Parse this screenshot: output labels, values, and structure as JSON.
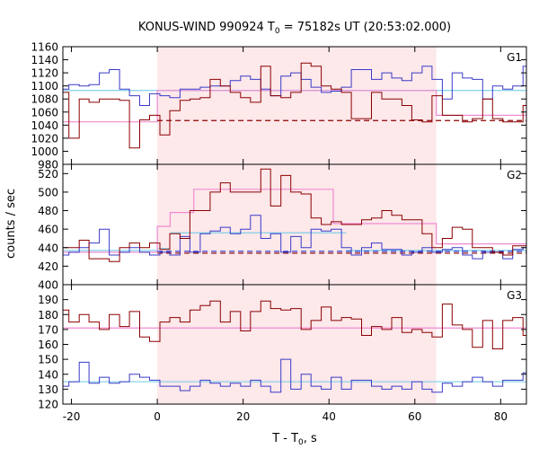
{
  "chart_data": {
    "type": "line",
    "title_main": "KONUS-WIND 990924 T",
    "title_sub": "0",
    "title_rest": " = 75182s UT (20:53:02.000)",
    "xlabel_main": "T - T",
    "xlabel_sub": "0",
    "xlabel_rest": ", s",
    "ylabel": "counts / sec",
    "xlim": [
      -22,
      86
    ],
    "xticks": [
      -20,
      0,
      20,
      40,
      60,
      80
    ],
    "shade": [
      0,
      65
    ],
    "colors": {
      "red": "#8b0000",
      "blue": "#3a3ac8",
      "pink": "#f08ad2",
      "cyan": "#7fd0e8",
      "shade": "#fde8ea"
    },
    "panels": [
      {
        "name": "G1",
        "ylim": [
          980,
          1160
        ],
        "yticks": [
          980,
          1000,
          1020,
          1040,
          1060,
          1080,
          1100,
          1120,
          1140,
          1160
        ],
        "red_x": [
          -22,
          -20.6,
          -18.2,
          -15.9,
          -13.5,
          -11.2,
          -8.8,
          -6.5,
          -4.1,
          -1.8,
          0.6,
          2.9,
          5.3,
          7.6,
          10.0,
          12.3,
          14.7,
          17.0,
          19.4,
          21.7,
          24.1,
          26.4,
          28.8,
          31.1,
          33.5,
          35.8,
          38.2,
          40.5,
          42.9,
          45.2,
          47.6,
          49.9,
          52.3,
          54.6,
          57.0,
          59.3,
          61.7,
          64.0,
          66.4,
          68.7,
          71.1,
          73.4,
          75.8,
          78.1,
          80.5,
          82.8,
          85.2,
          86
        ],
        "red_y": [
          1090,
          1020,
          1080,
          1075,
          1080,
          1080,
          1078,
          1005,
          1048,
          1055,
          1025,
          1062,
          1078,
          1080,
          1082,
          1110,
          1100,
          1090,
          1082,
          1075,
          1130,
          1085,
          1082,
          1090,
          1135,
          1130,
          1100,
          1095,
          1090,
          1050,
          1050,
          1090,
          1080,
          1080,
          1070,
          1048,
          1045,
          1085,
          1055,
          1055,
          1045,
          1050,
          1080,
          1050,
          1045,
          1045,
          1070,
          1070
        ],
        "red_step_x": [
          -22,
          0,
          2.9,
          5.3,
          7.6,
          10.0,
          12.3,
          14.7,
          17.0,
          19.4,
          21.7,
          24.1,
          26.4,
          28.8,
          31.1,
          33.5,
          35.8,
          38.2,
          40.5,
          42.9,
          45.2,
          47.6,
          49.9,
          52.3,
          54.6,
          57.0,
          59.3,
          61.7,
          64.0,
          65
        ],
        "blue_x": [
          -22,
          -20.6,
          -18.2,
          -15.9,
          -13.5,
          -11.2,
          -8.8,
          -6.5,
          -4.1,
          -1.8,
          0.6,
          2.9,
          5.3,
          7.6,
          10.0,
          12.3,
          14.7,
          17.0,
          19.4,
          21.7,
          24.1,
          26.4,
          28.8,
          31.1,
          33.5,
          35.8,
          38.2,
          40.5,
          42.9,
          45.2,
          47.6,
          49.9,
          52.3,
          54.6,
          57.0,
          59.3,
          61.7,
          64.0,
          66.4,
          68.7,
          71.1,
          73.4,
          75.8,
          78.1,
          80.5,
          82.8,
          85.2,
          86
        ],
        "blue_y": [
          1095,
          1102,
          1100,
          1102,
          1120,
          1125,
          1095,
          1085,
          1070,
          1088,
          1085,
          1082,
          1095,
          1095,
          1098,
          1100,
          1100,
          1108,
          1115,
          1110,
          1095,
          1085,
          1115,
          1120,
          1110,
          1098,
          1090,
          1092,
          1098,
          1125,
          1125,
          1110,
          1120,
          1112,
          1108,
          1120,
          1130,
          1110,
          1080,
          1120,
          1112,
          1110,
          1080,
          1100,
          1095,
          1100,
          1130,
          1130
        ],
        "pink_segments": [
          {
            "x": [
              -22,
              0
            ],
            "y": 1045
          },
          {
            "x": [
              0,
              65
            ],
            "y": 1093
          },
          {
            "x": [
              65,
              86
            ],
            "y": 1055
          }
        ],
        "cyan_y": 1093,
        "red_dash_y": 1047
      },
      {
        "name": "G2",
        "ylim": [
          400,
          530
        ],
        "yticks": [
          400,
          420,
          440,
          460,
          480,
          500,
          520
        ],
        "red_x": [
          -22,
          -20.6,
          -18.2,
          -15.9,
          -13.5,
          -11.2,
          -8.8,
          -6.5,
          -4.1,
          -1.8,
          0.6,
          2.9,
          5.3,
          7.6,
          10.0,
          12.3,
          14.7,
          17.0,
          19.4,
          21.7,
          24.1,
          26.4,
          28.8,
          31.1,
          33.5,
          35.8,
          38.2,
          40.5,
          42.9,
          45.2,
          47.6,
          49.9,
          52.3,
          54.6,
          57.0,
          59.3,
          61.7,
          64.0,
          66.4,
          68.7,
          71.1,
          73.4,
          75.8,
          78.1,
          80.5,
          82.8,
          85.2,
          86
        ],
        "red_y": [
          440,
          440,
          448,
          428,
          428,
          425,
          440,
          445,
          440,
          445,
          438,
          455,
          450,
          480,
          480,
          500,
          510,
          500,
          500,
          500,
          525,
          485,
          518,
          500,
          498,
          472,
          465,
          468,
          465,
          465,
          470,
          472,
          480,
          475,
          470,
          470,
          455,
          440,
          450,
          462,
          460,
          440,
          440,
          435,
          432,
          442,
          442,
          442
        ],
        "blue_x": [
          -22,
          -20.6,
          -18.2,
          -15.9,
          -13.5,
          -11.2,
          -8.8,
          -6.5,
          -4.1,
          -1.8,
          0.6,
          2.9,
          5.3,
          7.6,
          10.0,
          12.3,
          14.7,
          17.0,
          19.4,
          21.7,
          24.1,
          26.4,
          28.8,
          31.1,
          33.5,
          35.8,
          38.2,
          40.5,
          42.9,
          45.2,
          47.6,
          49.9,
          52.3,
          54.6,
          57.0,
          59.3,
          61.7,
          64.0,
          66.4,
          68.7,
          71.1,
          73.4,
          75.8,
          78.1,
          80.5,
          82.8,
          85.2,
          86
        ],
        "blue_y": [
          432,
          435,
          440,
          445,
          460,
          432,
          435,
          440,
          435,
          432,
          435,
          432,
          452,
          435,
          455,
          458,
          462,
          455,
          460,
          475,
          450,
          455,
          435,
          452,
          440,
          460,
          458,
          460,
          440,
          432,
          440,
          445,
          438,
          438,
          432,
          435,
          440,
          435,
          438,
          440,
          432,
          428,
          435,
          435,
          428,
          438,
          440,
          440
        ],
        "pink_segments": [
          {
            "x": [
              -22,
              0
            ],
            "y": 435
          },
          {
            "x": [
              0,
              3
            ],
            "y": 463
          },
          {
            "x": [
              3,
              8.5
            ],
            "y": 478
          },
          {
            "x": [
              8.5,
              41
            ],
            "y": 503
          },
          {
            "x": [
              41,
              65
            ],
            "y": 466
          },
          {
            "x": [
              65,
              86
            ],
            "y": 444
          }
        ],
        "cyan_segments": [
          {
            "x": [
              -22,
              0
            ],
            "y": 437
          },
          {
            "x": [
              0,
              3
            ],
            "y": 439
          },
          {
            "x": [
              3,
              44
            ],
            "y": 456
          },
          {
            "x": [
              44,
              86
            ],
            "y": 437
          }
        ],
        "red_dash_y": 434,
        "blue_dash_y": 436
      },
      {
        "name": "G3",
        "ylim": [
          120,
          200
        ],
        "yticks": [
          120,
          130,
          140,
          150,
          160,
          170,
          180,
          190,
          200
        ],
        "red_x": [
          -22,
          -20.6,
          -18.2,
          -15.9,
          -13.5,
          -11.2,
          -8.8,
          -6.5,
          -4.1,
          -1.8,
          0.6,
          2.9,
          5.3,
          7.6,
          10.0,
          12.3,
          14.7,
          17.0,
          19.4,
          21.7,
          24.1,
          26.4,
          28.8,
          31.1,
          33.5,
          35.8,
          38.2,
          40.5,
          42.9,
          45.2,
          47.6,
          49.9,
          52.3,
          54.6,
          57.0,
          59.3,
          61.7,
          64.0,
          66.4,
          68.7,
          71.1,
          73.4,
          75.8,
          78.1,
          80.5,
          82.8,
          85.2,
          86
        ],
        "red_y": [
          183,
          175,
          180,
          175,
          170,
          180,
          172,
          182,
          165,
          162,
          175,
          178,
          175,
          183,
          186,
          189,
          175,
          182,
          169,
          182,
          189,
          184,
          183,
          184,
          170,
          176,
          185,
          176,
          178,
          177,
          166,
          172,
          170,
          178,
          168,
          170,
          168,
          165,
          187,
          173,
          170,
          158,
          176,
          157,
          176,
          178,
          166,
          166
        ],
        "blue_x": [
          -22,
          -20.6,
          -18.2,
          -15.9,
          -13.5,
          -11.2,
          -8.8,
          -6.5,
          -4.1,
          -1.8,
          0.6,
          2.9,
          5.3,
          7.6,
          10.0,
          12.3,
          14.7,
          17.0,
          19.4,
          21.7,
          24.1,
          26.4,
          28.8,
          31.1,
          33.5,
          35.8,
          38.2,
          40.5,
          42.9,
          45.2,
          47.6,
          49.9,
          52.3,
          54.6,
          57.0,
          59.3,
          61.7,
          64.0,
          66.4,
          68.7,
          71.1,
          73.4,
          75.8,
          78.1,
          80.5,
          82.8,
          85.2,
          86
        ],
        "blue_y": [
          132,
          135,
          148,
          134,
          138,
          134,
          135,
          140,
          138,
          136,
          132,
          132,
          129,
          132,
          136,
          134,
          132,
          134,
          132,
          136,
          132,
          128,
          150,
          130,
          140,
          132,
          130,
          138,
          130,
          136,
          136,
          132,
          130,
          132,
          130,
          135,
          130,
          128,
          134,
          132,
          135,
          138,
          135,
          132,
          136,
          136,
          141,
          141
        ],
        "pink_y": 171,
        "cyan_y": 135
      }
    ]
  }
}
